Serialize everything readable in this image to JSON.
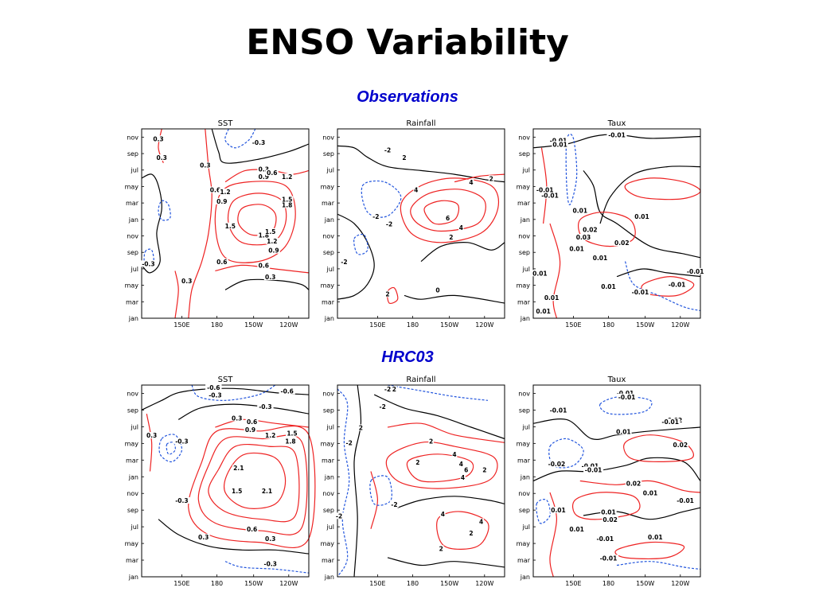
{
  "title": "ENSO Variability",
  "sections": [
    {
      "label": "Observations",
      "panels": [
        {
          "title": "SST",
          "labels": [
            "0.3",
            "0.3",
            "-0.3",
            "0.3",
            "0.3",
            "0.9",
            "0.6",
            "1.2",
            "0.6",
            "1.2",
            "0.9",
            "1.5",
            "1.5",
            "1.8",
            "1.8",
            "1.5",
            "1.2",
            "0.9",
            "0.6",
            "0.6",
            "0.3",
            "-0.3",
            "0.3"
          ]
        },
        {
          "title": "Rainfall",
          "labels": [
            "-2",
            "2",
            "4",
            "2",
            "4",
            "-2",
            "-2",
            "6",
            "4",
            "2",
            "-2",
            "2",
            "0"
          ]
        },
        {
          "title": "Taux",
          "labels": [
            "-0.01",
            "-0.01",
            "0.01",
            "-0.01",
            "0.01",
            "-0.01",
            "0.01",
            "0.02",
            "0.03",
            "0.02",
            "0.01",
            "0.01",
            "-0.01",
            "0.01",
            "-0.01",
            "0.01",
            "-0.01",
            "0.01",
            "0.01"
          ]
        }
      ]
    },
    {
      "label": "HRC03",
      "panels": [
        {
          "title": "SST",
          "labels": [
            "-0.6",
            "-0.6",
            "-0.3",
            "-0.3",
            "0.3",
            "0.6",
            "0.9",
            "1.2",
            "1.5",
            "1.8",
            "-0.3",
            "0.3",
            "2.1",
            "1.5",
            "2.1",
            "-0.3",
            "0.6",
            "0.3",
            "0.3",
            "-0.3"
          ]
        },
        {
          "title": "Rainfall",
          "labels": [
            "-2",
            "2",
            "-2",
            "2",
            "2",
            "4",
            "-2",
            "2",
            "4",
            "6",
            "4",
            "2",
            "-2",
            "4",
            "4",
            "2",
            "-2",
            "2"
          ]
        },
        {
          "title": "Taux",
          "labels": [
            "-0.01",
            "-0.01",
            "-0.01",
            "-0.02",
            "-0.01",
            "0.01",
            "0.02",
            "-0.01",
            "-0.02",
            "-0.01",
            "0.02",
            "0.01",
            "-0.01",
            "0.01",
            "0.01",
            "0.02",
            "0.01",
            "-0.01",
            "0.01",
            "-0.01"
          ]
        }
      ]
    }
  ],
  "axes": {
    "x_ticks": [
      "150E",
      "180",
      "150W",
      "120W"
    ],
    "y_ticks": [
      "jan",
      "mar",
      "may",
      "jul",
      "sep",
      "nov",
      "jan",
      "mar",
      "may",
      "jul",
      "sep",
      "nov"
    ]
  },
  "colors": {
    "positive": "#ee2222",
    "negative": "#2255dd",
    "zero": "#000000",
    "label_text": "#0000cc"
  }
}
